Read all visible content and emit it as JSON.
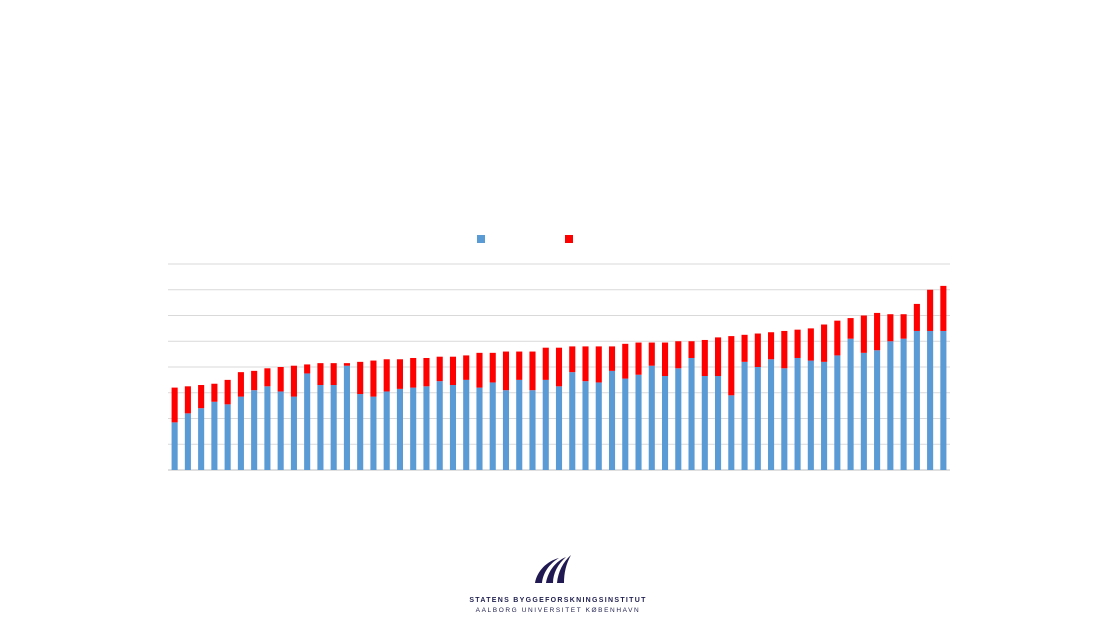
{
  "chart_data": {
    "type": "bar",
    "stacked": true,
    "grid": true,
    "legend_position": "top",
    "ylim": [
      0,
      8
    ],
    "series": [
      {
        "name": "",
        "color": "#5B9BD5",
        "values": [
          1.85,
          2.2,
          2.4,
          2.65,
          2.55,
          2.85,
          3.1,
          3.25,
          3.05,
          2.85,
          3.75,
          3.3,
          3.3,
          4.05,
          2.95,
          2.85,
          3.05,
          3.15,
          3.2,
          3.25,
          3.45,
          3.3,
          3.5,
          3.2,
          3.4,
          3.1,
          3.5,
          3.1,
          3.5,
          3.25,
          3.8,
          3.45,
          3.4,
          3.85,
          3.55,
          3.7,
          4.05,
          3.65,
          3.95,
          4.35,
          3.65,
          3.65,
          2.9,
          4.2,
          4.0,
          4.3,
          3.95,
          4.35,
          4.25,
          4.2,
          4.45,
          5.1,
          4.55,
          4.65,
          5.0,
          5.1,
          5.4,
          5.4,
          5.4
        ]
      },
      {
        "name": "",
        "color": "#FF0000",
        "values": [
          1.35,
          1.05,
          0.9,
          0.7,
          0.95,
          0.95,
          0.75,
          0.7,
          0.95,
          1.2,
          0.35,
          0.85,
          0.85,
          0.1,
          1.25,
          1.4,
          1.25,
          1.15,
          1.15,
          1.1,
          0.95,
          1.1,
          0.95,
          1.35,
          1.15,
          1.5,
          1.1,
          1.5,
          1.25,
          1.5,
          1.0,
          1.35,
          1.4,
          0.95,
          1.35,
          1.25,
          0.9,
          1.3,
          1.05,
          0.65,
          1.4,
          1.5,
          2.3,
          1.05,
          1.3,
          1.05,
          1.45,
          1.1,
          1.25,
          1.45,
          1.35,
          0.8,
          1.45,
          1.45,
          1.05,
          0.95,
          1.05,
          1.6,
          1.75
        ]
      }
    ]
  },
  "logo": {
    "line1": "STATENS BYGGEFORSKNINGSINSTITUT",
    "line2": "AALBORG UNIVERSITET KØBENHAVN"
  }
}
